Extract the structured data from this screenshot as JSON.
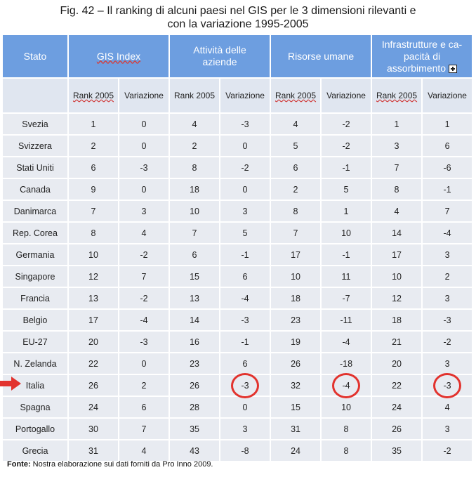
{
  "title": {
    "line1": "Fig. 42 – Il ranking di alcuni paesi nel GIS per le 3 dimensioni rilevanti e",
    "line2": "con la variazione 1995-2005"
  },
  "headers": {
    "stato": "Stato",
    "gis": "GIS Index",
    "attivita_line1": "Attività delle",
    "attivita_line2": "aziende",
    "risorse": "Risorse umane",
    "infra_line1": "Infrastrutture e ca-",
    "infra_line2": "pacità di",
    "infra_line3": "assorbimento"
  },
  "subheaders": {
    "rank": "Rank 2005",
    "variazione": "Variazione"
  },
  "rows": [
    {
      "stato": "Svezia",
      "c": [
        "1",
        "0",
        "4",
        "-3",
        "4",
        "-2",
        "1",
        "1"
      ]
    },
    {
      "stato": "Svizzera",
      "c": [
        "2",
        "0",
        "2",
        "0",
        "5",
        "-2",
        "3",
        "6"
      ]
    },
    {
      "stato": "Stati Uniti",
      "c": [
        "6",
        "-3",
        "8",
        "-2",
        "6",
        "-1",
        "7",
        "-6"
      ]
    },
    {
      "stato": "Canada",
      "c": [
        "9",
        "0",
        "18",
        "0",
        "2",
        "5",
        "8",
        "-1"
      ]
    },
    {
      "stato": "Danimarca",
      "c": [
        "7",
        "3",
        "10",
        "3",
        "8",
        "1",
        "4",
        "7"
      ]
    },
    {
      "stato": "Rep. Corea",
      "c": [
        "8",
        "4",
        "7",
        "5",
        "7",
        "10",
        "14",
        "-4"
      ]
    },
    {
      "stato": "Germania",
      "c": [
        "10",
        "-2",
        "6",
        "-1",
        "17",
        "-1",
        "17",
        "3"
      ]
    },
    {
      "stato": "Singapore",
      "c": [
        "12",
        "7",
        "15",
        "6",
        "10",
        "11",
        "10",
        "2"
      ]
    },
    {
      "stato": "Francia",
      "c": [
        "13",
        "-2",
        "13",
        "-4",
        "18",
        "-7",
        "12",
        "3"
      ]
    },
    {
      "stato": "Belgio",
      "c": [
        "17",
        "-4",
        "14",
        "-3",
        "23",
        "-11",
        "18",
        "-3"
      ]
    },
    {
      "stato": "EU-27",
      "c": [
        "20",
        "-3",
        "16",
        "-1",
        "19",
        "-4",
        "21",
        "-2"
      ]
    },
    {
      "stato": "N. Zelanda",
      "c": [
        "22",
        "0",
        "23",
        "6",
        "26",
        "-18",
        "20",
        "3"
      ]
    },
    {
      "stato": "Italia",
      "c": [
        "26",
        "2",
        "26",
        "-3",
        "32",
        "-4",
        "22",
        "-3"
      ]
    },
    {
      "stato": "Spagna",
      "c": [
        "24",
        "6",
        "28",
        "0",
        "15",
        "10",
        "24",
        "4"
      ]
    },
    {
      "stato": "Portogallo",
      "c": [
        "30",
        "7",
        "35",
        "3",
        "31",
        "8",
        "26",
        "3"
      ]
    },
    {
      "stato": "Grecia",
      "c": [
        "31",
        "4",
        "43",
        "-8",
        "24",
        "8",
        "35",
        "-2"
      ]
    }
  ],
  "footer": {
    "label": "Fonte:",
    "text": " Nostra elaborazione sui dati forniti da Pro Inno 2009."
  },
  "colors": {
    "header_bg": "#6d9ee0",
    "cell_bg": "#e8ebf1",
    "highlight": "#e2332e"
  }
}
